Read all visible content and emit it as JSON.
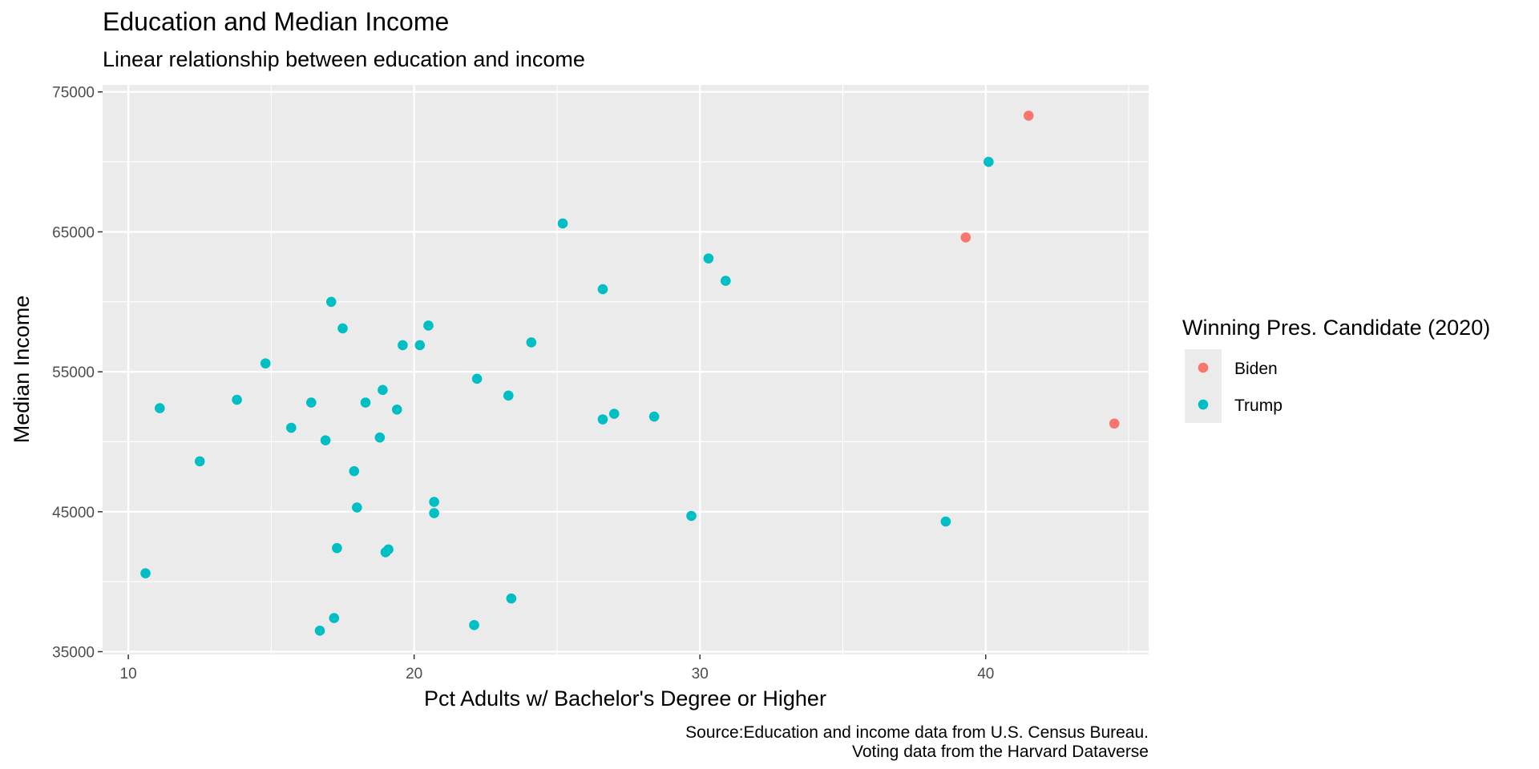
{
  "chart_data": {
    "type": "scatter",
    "title": "Education and Median Income",
    "subtitle": "Linear relationship between education and income",
    "xlabel": "Pct Adults w/ Bachelor's Degree or Higher",
    "ylabel": "Median Income",
    "xlim": [
      9.1,
      45.7
    ],
    "ylim": [
      34800,
      75500
    ],
    "x_ticks": [
      10,
      20,
      30,
      40
    ],
    "y_ticks": [
      35000,
      45000,
      55000,
      65000,
      75000
    ],
    "grid": true,
    "legend": {
      "title": "Winning Pres. Candidate (2020)",
      "placement": "right"
    },
    "caption": [
      "Source:Education and income data from U.S. Census Bureau.",
      "Voting data from the Harvard Dataverse"
    ],
    "series": [
      {
        "name": "Biden",
        "color": "#F8766D",
        "points": [
          {
            "x": 41.5,
            "y": 73300
          },
          {
            "x": 39.3,
            "y": 64600
          },
          {
            "x": 44.5,
            "y": 51300
          }
        ]
      },
      {
        "name": "Trump",
        "color": "#00BFC4",
        "points": [
          {
            "x": 40.1,
            "y": 70000
          },
          {
            "x": 25.2,
            "y": 65600
          },
          {
            "x": 30.3,
            "y": 63100
          },
          {
            "x": 30.9,
            "y": 61500
          },
          {
            "x": 26.6,
            "y": 60900
          },
          {
            "x": 17.1,
            "y": 60000
          },
          {
            "x": 20.5,
            "y": 58300
          },
          {
            "x": 17.5,
            "y": 58100
          },
          {
            "x": 24.1,
            "y": 57100
          },
          {
            "x": 19.6,
            "y": 56900
          },
          {
            "x": 20.2,
            "y": 56900
          },
          {
            "x": 14.8,
            "y": 55600
          },
          {
            "x": 22.2,
            "y": 54500
          },
          {
            "x": 18.9,
            "y": 53700
          },
          {
            "x": 23.3,
            "y": 53300
          },
          {
            "x": 13.8,
            "y": 53000
          },
          {
            "x": 16.4,
            "y": 52800
          },
          {
            "x": 18.3,
            "y": 52800
          },
          {
            "x": 11.1,
            "y": 52400
          },
          {
            "x": 19.4,
            "y": 52300
          },
          {
            "x": 27.0,
            "y": 52000
          },
          {
            "x": 28.4,
            "y": 51800
          },
          {
            "x": 26.6,
            "y": 51600
          },
          {
            "x": 15.7,
            "y": 51000
          },
          {
            "x": 16.9,
            "y": 50100
          },
          {
            "x": 18.8,
            "y": 50300
          },
          {
            "x": 12.5,
            "y": 48600
          },
          {
            "x": 17.9,
            "y": 47900
          },
          {
            "x": 20.7,
            "y": 45700
          },
          {
            "x": 18.0,
            "y": 45300
          },
          {
            "x": 20.7,
            "y": 44900
          },
          {
            "x": 29.7,
            "y": 44700
          },
          {
            "x": 38.6,
            "y": 44300
          },
          {
            "x": 17.3,
            "y": 42400
          },
          {
            "x": 19.1,
            "y": 42300
          },
          {
            "x": 19.0,
            "y": 42100
          },
          {
            "x": 10.6,
            "y": 40600
          },
          {
            "x": 23.4,
            "y": 38800
          },
          {
            "x": 17.2,
            "y": 37400
          },
          {
            "x": 22.1,
            "y": 36900
          },
          {
            "x": 16.7,
            "y": 36500
          }
        ]
      }
    ]
  }
}
